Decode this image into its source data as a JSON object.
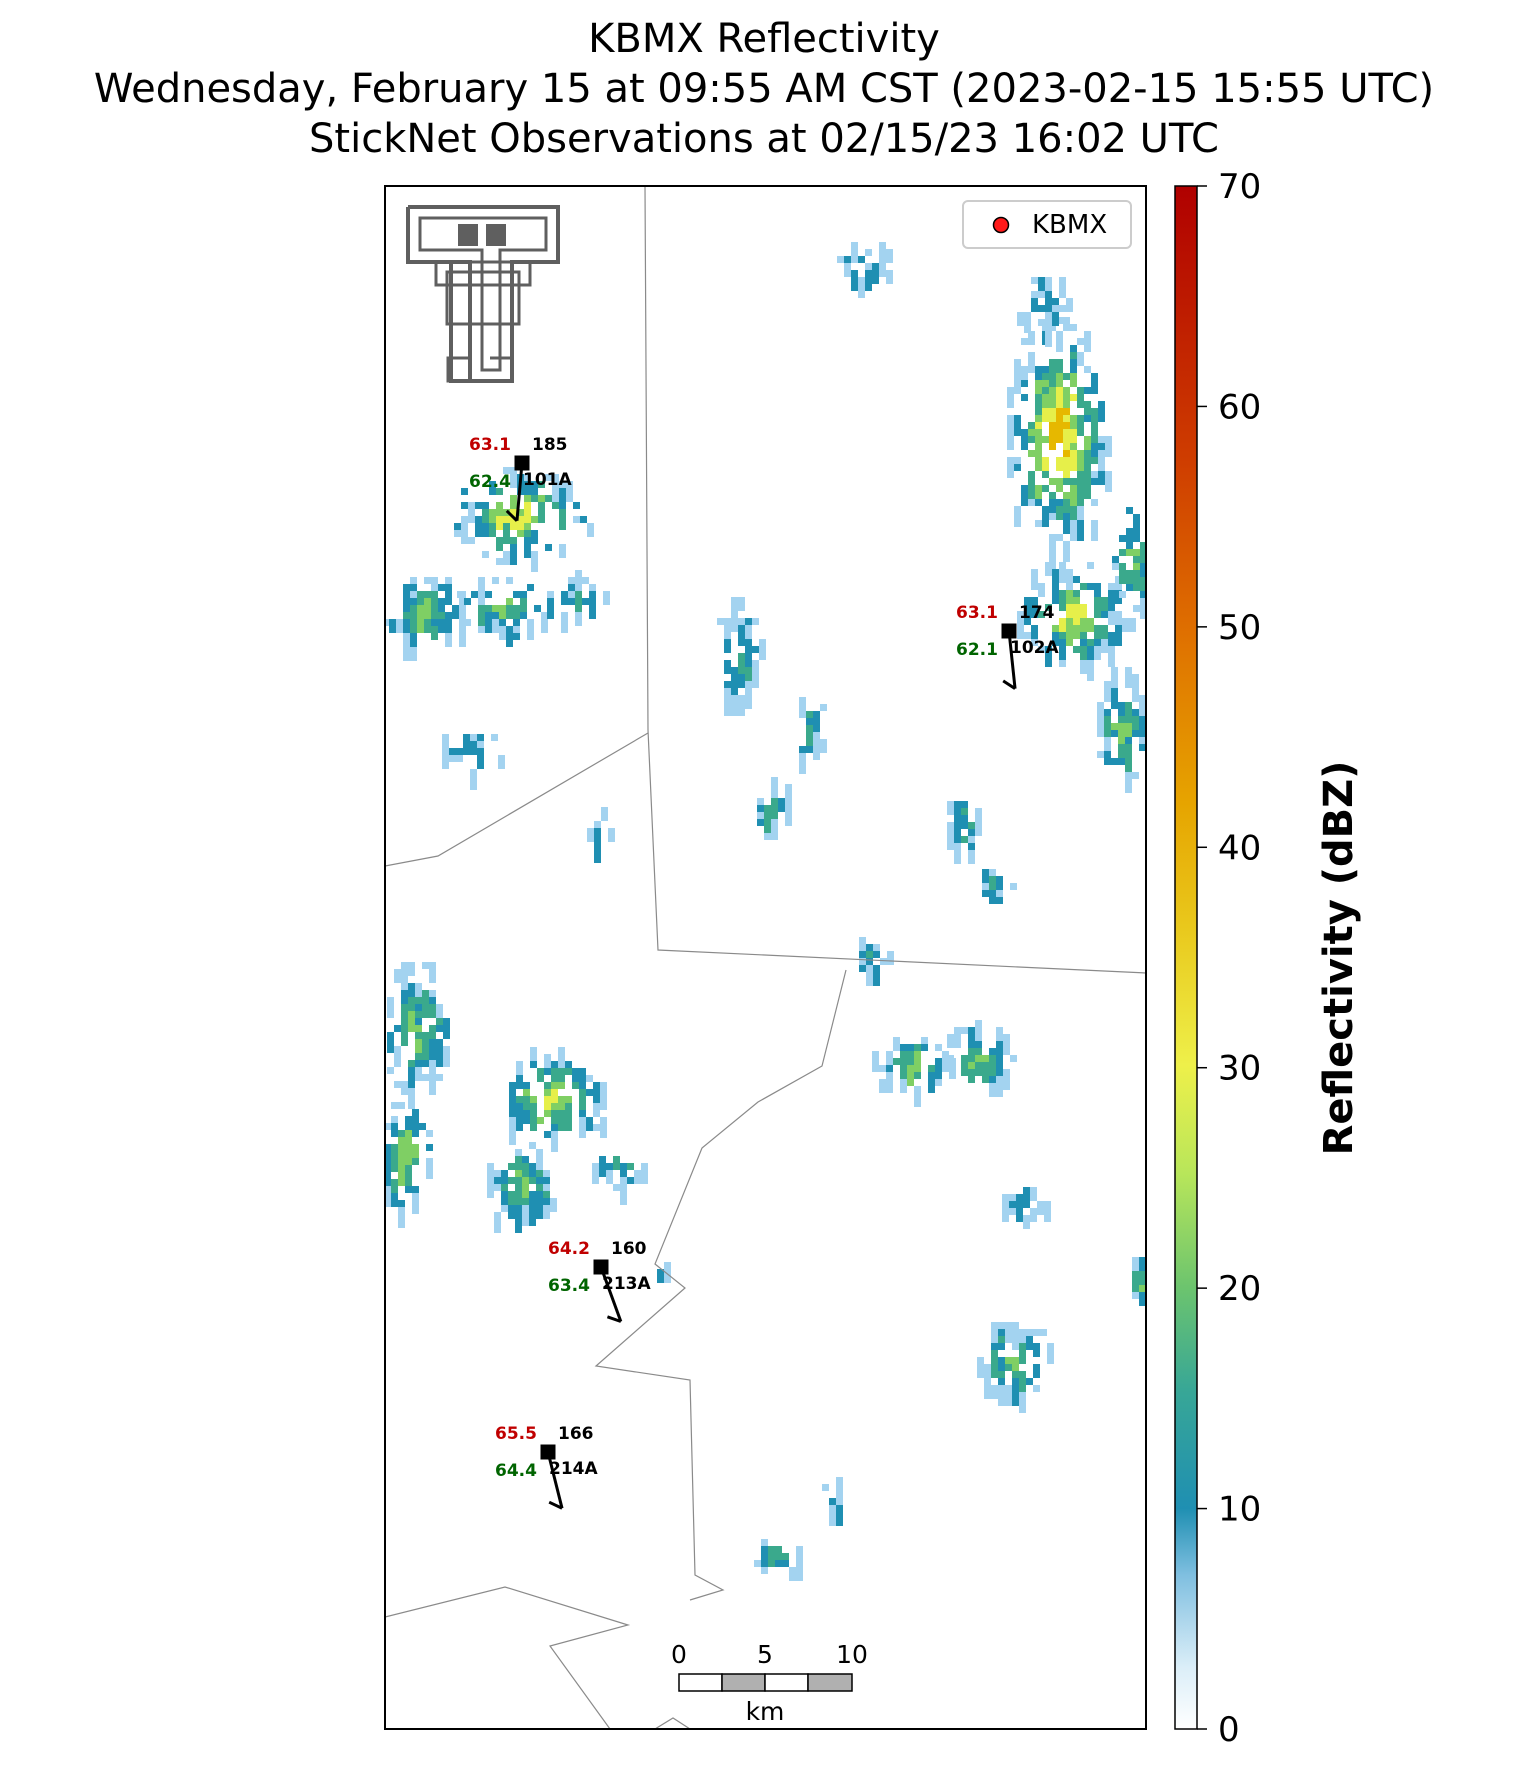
{
  "title": {
    "line1": "KBMX Reflectivity",
    "line2": "Wednesday, February 15 at 09:55 AM CST (2023-02-15 15:55 UTC)",
    "line3": "StickNet Observations at 02/15/23 16:02 UTC"
  },
  "legend": {
    "label": "KBMX",
    "marker_color": "#ff1a1a"
  },
  "logo": {
    "name": "texas-tech-double-t-logo",
    "color": "#5f5f5f"
  },
  "colorbar": {
    "label": "Reflectivity (dBZ)",
    "min": 0,
    "max": 70,
    "ticks": [
      "0",
      "10",
      "20",
      "30",
      "40",
      "50",
      "60",
      "70"
    ],
    "colors": [
      "#ffffff",
      "#a3d3f0",
      "#1f8fb2",
      "#3aa98c",
      "#7fcf64",
      "#e6ef4a",
      "#e6b800",
      "#e07800",
      "#d03c00",
      "#b50000"
    ]
  },
  "scale_bar": {
    "unit": "km",
    "labels": [
      "0",
      "5",
      "10"
    ]
  },
  "temp_color": "#c00000",
  "dew_color": "#006400",
  "stations": [
    {
      "id": "101A",
      "temp": "63.1",
      "dew": "62.4",
      "dir": "185"
    },
    {
      "id": "102A",
      "temp": "63.1",
      "dew": "62.1",
      "dir": "174"
    },
    {
      "id": "213A",
      "temp": "64.2",
      "dew": "63.4",
      "dir": "160"
    },
    {
      "id": "214A",
      "temp": "65.5",
      "dew": "64.4",
      "dir": "166"
    }
  ]
}
